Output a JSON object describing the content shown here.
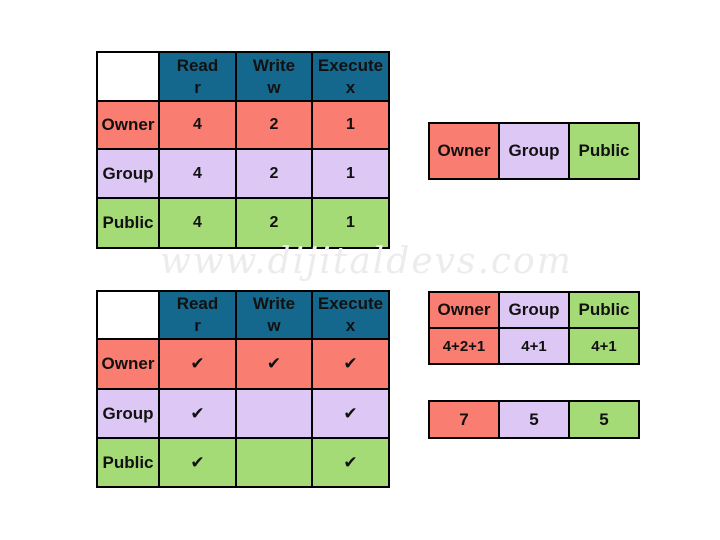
{
  "colors": {
    "header_bg": "#15688d",
    "header_text": "#ffffff",
    "owner_bg": "#f97d70",
    "group_bg": "#ddc8f5",
    "public_bg": "#a5db77",
    "border": "#000000",
    "body_text": "#111111"
  },
  "watermark": {
    "text": "www.dijitaldevs.com"
  },
  "tables": {
    "values_table": {
      "headers": [
        {
          "title": "Read",
          "sub": "r"
        },
        {
          "title": "Write",
          "sub": "w"
        },
        {
          "title": "Execute",
          "sub": "x"
        }
      ],
      "rows": [
        {
          "label": "Owner",
          "values": [
            "4",
            "2",
            "1"
          ]
        },
        {
          "label": "Group",
          "values": [
            "4",
            "2",
            "1"
          ]
        },
        {
          "label": "Public",
          "values": [
            "4",
            "2",
            "1"
          ]
        }
      ]
    },
    "entities_row": {
      "cells": [
        "Owner",
        "Group",
        "Public"
      ]
    },
    "checks_table": {
      "headers": [
        {
          "title": "Read",
          "sub": "r"
        },
        {
          "title": "Write",
          "sub": "w"
        },
        {
          "title": "Execute",
          "sub": "x"
        }
      ],
      "rows": [
        {
          "label": "Owner",
          "values": [
            "✔",
            "✔",
            "✔"
          ]
        },
        {
          "label": "Group",
          "values": [
            "✔",
            "",
            "✔"
          ]
        },
        {
          "label": "Public",
          "values": [
            "✔",
            "",
            "✔"
          ]
        }
      ]
    },
    "sum_table": {
      "headers": [
        "Owner",
        "Group",
        "Public"
      ],
      "values": [
        "4+2+1",
        "4+1",
        "4+1"
      ]
    },
    "result_row": {
      "values": [
        "7",
        "5",
        "5"
      ]
    }
  }
}
